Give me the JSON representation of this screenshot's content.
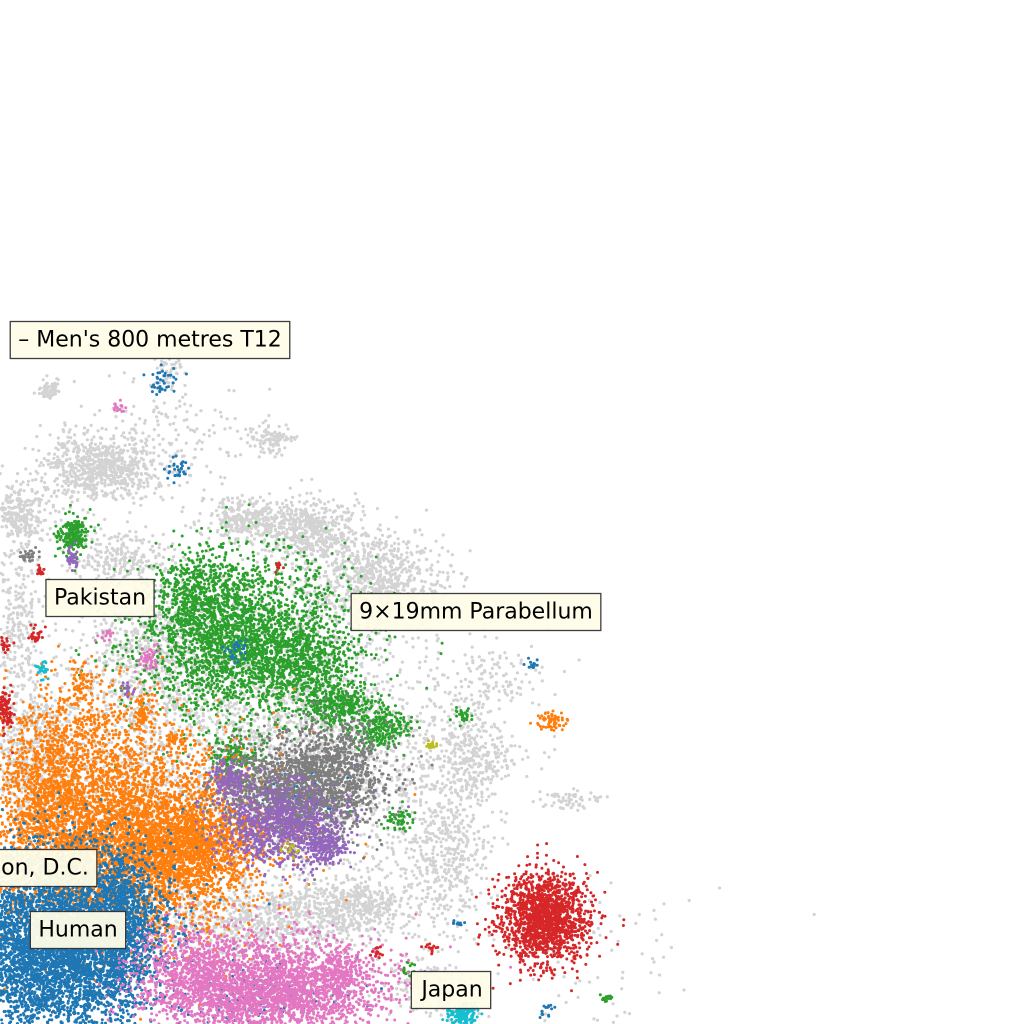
{
  "chart_data": {
    "type": "scatter",
    "title": "",
    "xlabel": "",
    "ylabel": "",
    "axes_visible": false,
    "grid": false,
    "background_color": "#d3d3d3",
    "annotations": [
      {
        "text": "– Men's 800 metres T12",
        "x": 150,
        "y": 340
      },
      {
        "text": "Pakistan",
        "x": 100,
        "y": 598
      },
      {
        "text": "9×19mm Parabellum",
        "x": 476,
        "y": 612
      },
      {
        "text": "on, D.C.",
        "x": 45,
        "y": 868
      },
      {
        "text": "Human",
        "x": 78,
        "y": 930
      },
      {
        "text": "Japan",
        "x": 452,
        "y": 990
      }
    ],
    "series": [
      {
        "color": "#2ca02c",
        "clusters": [
          {
            "x": 245,
            "y": 640,
            "sx": 55,
            "sy": 40,
            "n": 2600
          },
          {
            "x": 200,
            "y": 600,
            "sx": 20,
            "sy": 25,
            "n": 500
          },
          {
            "x": 300,
            "y": 660,
            "sx": 25,
            "sy": 20,
            "n": 400
          },
          {
            "x": 340,
            "y": 705,
            "sx": 18,
            "sy": 12,
            "n": 300
          },
          {
            "x": 380,
            "y": 728,
            "sx": 15,
            "sy": 10,
            "n": 250
          },
          {
            "x": 72,
            "y": 535,
            "sx": 8,
            "sy": 10,
            "n": 200
          },
          {
            "x": 235,
            "y": 760,
            "sx": 12,
            "sy": 10,
            "n": 150
          },
          {
            "x": 398,
            "y": 820,
            "sx": 7,
            "sy": 6,
            "n": 60
          },
          {
            "x": 462,
            "y": 716,
            "sx": 4,
            "sy": 4,
            "n": 30
          },
          {
            "x": 408,
            "y": 970,
            "sx": 4,
            "sy": 4,
            "n": 20
          },
          {
            "x": 606,
            "y": 998,
            "sx": 4,
            "sy": 3,
            "n": 15
          }
        ]
      },
      {
        "color": "#ff7f0e",
        "clusters": [
          {
            "x": 115,
            "y": 840,
            "sx": 70,
            "sy": 50,
            "n": 5500
          },
          {
            "x": 190,
            "y": 845,
            "sx": 30,
            "sy": 22,
            "n": 1000
          },
          {
            "x": 50,
            "y": 780,
            "sx": 25,
            "sy": 35,
            "n": 600
          },
          {
            "x": 90,
            "y": 730,
            "sx": 40,
            "sy": 30,
            "n": 400
          },
          {
            "x": 80,
            "y": 680,
            "sx": 6,
            "sy": 10,
            "n": 60
          },
          {
            "x": 143,
            "y": 712,
            "sx": 5,
            "sy": 8,
            "n": 60
          },
          {
            "x": 552,
            "y": 722,
            "sx": 7,
            "sy": 5,
            "n": 60
          },
          {
            "x": 176,
            "y": 742,
            "sx": 5,
            "sy": 6,
            "n": 40
          }
        ]
      },
      {
        "color": "#1f77b4",
        "clusters": [
          {
            "x": 55,
            "y": 945,
            "sx": 50,
            "sy": 45,
            "n": 6500
          },
          {
            "x": 120,
            "y": 920,
            "sx": 18,
            "sy": 40,
            "n": 900
          },
          {
            "x": 255,
            "y": 995,
            "sx": 45,
            "sy": 15,
            "n": 150
          },
          {
            "x": 160,
            "y": 382,
            "sx": 8,
            "sy": 8,
            "n": 40
          },
          {
            "x": 178,
            "y": 470,
            "sx": 6,
            "sy": 6,
            "n": 30
          },
          {
            "x": 300,
            "y": 790,
            "sx": 20,
            "sy": 15,
            "n": 80
          },
          {
            "x": 530,
            "y": 665,
            "sx": 3,
            "sy": 3,
            "n": 12
          },
          {
            "x": 548,
            "y": 1010,
            "sx": 4,
            "sy": 4,
            "n": 15
          },
          {
            "x": 458,
            "y": 924,
            "sx": 3,
            "sy": 3,
            "n": 10
          },
          {
            "x": 236,
            "y": 650,
            "sx": 6,
            "sy": 6,
            "n": 30
          }
        ]
      },
      {
        "color": "#e377c2",
        "clusters": [
          {
            "x": 275,
            "y": 990,
            "sx": 55,
            "sy": 25,
            "n": 2800
          },
          {
            "x": 190,
            "y": 975,
            "sx": 30,
            "sy": 25,
            "n": 700
          },
          {
            "x": 340,
            "y": 970,
            "sx": 15,
            "sy": 8,
            "n": 150
          },
          {
            "x": 148,
            "y": 658,
            "sx": 6,
            "sy": 6,
            "n": 50
          },
          {
            "x": 120,
            "y": 406,
            "sx": 3,
            "sy": 3,
            "n": 15
          },
          {
            "x": 105,
            "y": 636,
            "sx": 4,
            "sy": 4,
            "n": 15
          }
        ]
      },
      {
        "color": "#7f7f7f",
        "clusters": [
          {
            "x": 300,
            "y": 790,
            "sx": 40,
            "sy": 25,
            "n": 1700
          },
          {
            "x": 340,
            "y": 750,
            "sx": 20,
            "sy": 20,
            "n": 300
          },
          {
            "x": 28,
            "y": 555,
            "sx": 5,
            "sy": 5,
            "n": 30
          }
        ]
      },
      {
        "color": "#9467bd",
        "clusters": [
          {
            "x": 280,
            "y": 825,
            "sx": 30,
            "sy": 20,
            "n": 900
          },
          {
            "x": 325,
            "y": 845,
            "sx": 10,
            "sy": 10,
            "n": 200
          },
          {
            "x": 228,
            "y": 778,
            "sx": 10,
            "sy": 8,
            "n": 150
          },
          {
            "x": 72,
            "y": 558,
            "sx": 3,
            "sy": 6,
            "n": 40
          },
          {
            "x": 128,
            "y": 690,
            "sx": 3,
            "sy": 3,
            "n": 20
          }
        ]
      },
      {
        "color": "#d62728",
        "clusters": [
          {
            "x": 545,
            "y": 918,
            "sx": 22,
            "sy": 22,
            "n": 1600
          },
          {
            "x": 5,
            "y": 710,
            "sx": 4,
            "sy": 10,
            "n": 100
          },
          {
            "x": 36,
            "y": 636,
            "sx": 4,
            "sy": 4,
            "n": 30
          },
          {
            "x": 40,
            "y": 570,
            "sx": 3,
            "sy": 3,
            "n": 15
          },
          {
            "x": 430,
            "y": 948,
            "sx": 3,
            "sy": 3,
            "n": 15
          },
          {
            "x": 378,
            "y": 952,
            "sx": 3,
            "sy": 3,
            "n": 15
          },
          {
            "x": 278,
            "y": 567,
            "sx": 2,
            "sy": 2,
            "n": 10
          },
          {
            "x": 5,
            "y": 645,
            "sx": 4,
            "sy": 4,
            "n": 20
          }
        ]
      },
      {
        "color": "#17becf",
        "clusters": [
          {
            "x": 462,
            "y": 1014,
            "sx": 8,
            "sy": 5,
            "n": 120
          },
          {
            "x": 42,
            "y": 670,
            "sx": 3,
            "sy": 4,
            "n": 25
          }
        ]
      },
      {
        "color": "#bcbd22",
        "clusters": [
          {
            "x": 430,
            "y": 745,
            "sx": 3,
            "sy": 2,
            "n": 15
          },
          {
            "x": 290,
            "y": 850,
            "sx": 4,
            "sy": 4,
            "n": 15
          }
        ]
      }
    ],
    "background_clusters": [
      {
        "x": 100,
        "y": 468,
        "sx": 30,
        "sy": 15,
        "n": 700
      },
      {
        "x": 310,
        "y": 530,
        "sx": 25,
        "sy": 15,
        "n": 500
      },
      {
        "x": 245,
        "y": 518,
        "sx": 20,
        "sy": 10,
        "n": 300
      },
      {
        "x": 375,
        "y": 580,
        "sx": 35,
        "sy": 25,
        "n": 800
      },
      {
        "x": 20,
        "y": 515,
        "sx": 15,
        "sy": 15,
        "n": 250
      },
      {
        "x": 30,
        "y": 760,
        "sx": 25,
        "sy": 40,
        "n": 600
      },
      {
        "x": 445,
        "y": 855,
        "sx": 22,
        "sy": 40,
        "n": 450
      },
      {
        "x": 470,
        "y": 760,
        "sx": 20,
        "sy": 22,
        "n": 300
      },
      {
        "x": 265,
        "y": 920,
        "sx": 60,
        "sy": 20,
        "n": 900
      },
      {
        "x": 360,
        "y": 905,
        "sx": 25,
        "sy": 15,
        "n": 350
      },
      {
        "x": 300,
        "y": 740,
        "sx": 60,
        "sy": 70,
        "n": 1800
      },
      {
        "x": 150,
        "y": 650,
        "sx": 40,
        "sy": 40,
        "n": 800
      },
      {
        "x": 140,
        "y": 780,
        "sx": 50,
        "sy": 60,
        "n": 800
      },
      {
        "x": 270,
        "y": 440,
        "sx": 12,
        "sy": 8,
        "n": 100
      },
      {
        "x": 50,
        "y": 390,
        "sx": 6,
        "sy": 6,
        "n": 60
      },
      {
        "x": 120,
        "y": 560,
        "sx": 25,
        "sy": 15,
        "n": 250
      },
      {
        "x": 170,
        "y": 370,
        "sx": 8,
        "sy": 10,
        "n": 50
      },
      {
        "x": 570,
        "y": 800,
        "sx": 15,
        "sy": 5,
        "n": 60
      },
      {
        "x": 480,
        "y": 680,
        "sx": 30,
        "sy": 20,
        "n": 150
      },
      {
        "x": 150,
        "y": 440,
        "sx": 50,
        "sy": 30,
        "n": 200
      },
      {
        "x": 400,
        "y": 760,
        "sx": 60,
        "sy": 40,
        "n": 300
      },
      {
        "x": 15,
        "y": 620,
        "sx": 15,
        "sy": 40,
        "n": 300
      },
      {
        "x": 430,
        "y": 985,
        "sx": 25,
        "sy": 15,
        "n": 200
      },
      {
        "x": 600,
        "y": 960,
        "sx": 50,
        "sy": 50,
        "n": 80
      }
    ]
  }
}
